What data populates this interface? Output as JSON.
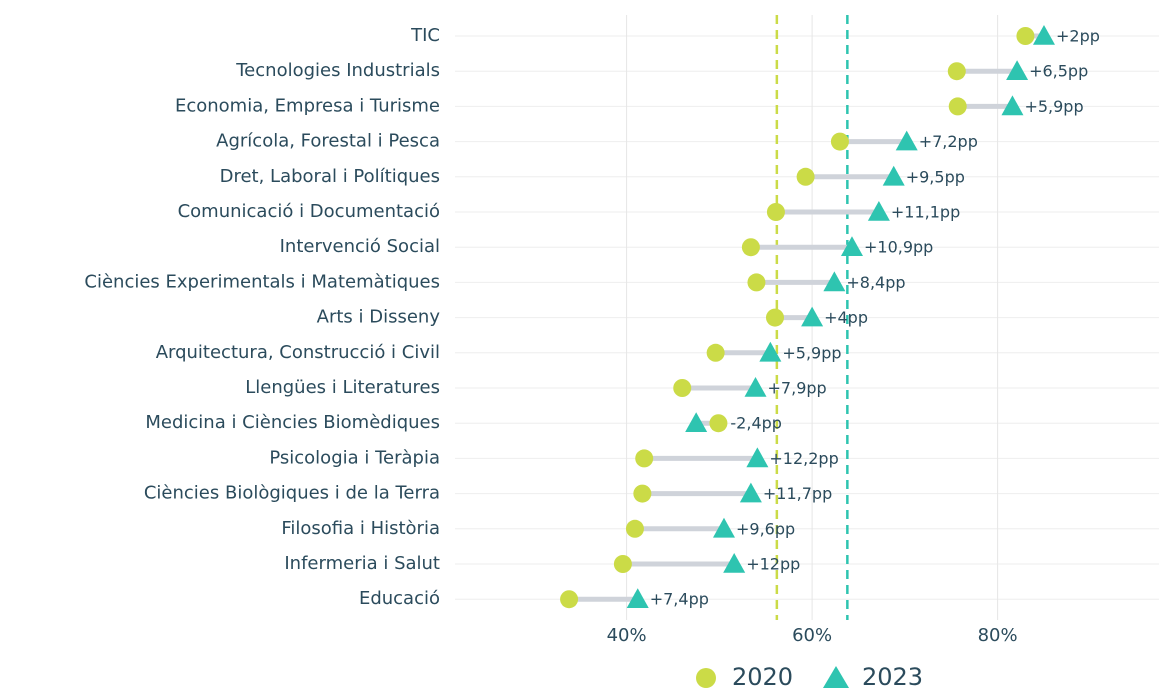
{
  "chart_data": {
    "type": "dumbbell",
    "categories": [
      "TIC",
      "Tecnologies Industrials",
      "Economia, Empresa i Turisme",
      "Agrícola, Forestal i Pesca",
      "Dret, Laboral i Polítiques",
      "Comunicació i Documentació",
      "Intervenció Social",
      "Ciències Experimentals i Matemàtiques",
      "Arts i Disseny",
      "Arquitectura, Construcció i Civil",
      "Llengües i Literatures",
      "Medicina i Ciències Biomèdiques",
      "Psicologia i Teràpia",
      "Ciències Biològiques i de la Terra",
      "Filosofia i Història",
      "Infermeria i Salut",
      "Educació"
    ],
    "series": [
      {
        "name": "2020",
        "color": "#cbdb47",
        "marker": "circle",
        "values": [
          83.0,
          75.6,
          75.7,
          63.0,
          59.3,
          56.1,
          53.4,
          54.0,
          56.0,
          49.6,
          46.0,
          49.9,
          41.9,
          41.7,
          40.9,
          39.6,
          33.8
        ]
      },
      {
        "name": "2023",
        "color": "#2ec4b0",
        "marker": "triangle",
        "values": [
          85.0,
          82.1,
          81.6,
          70.2,
          68.8,
          67.2,
          64.3,
          62.4,
          60.0,
          55.5,
          53.9,
          47.5,
          54.1,
          53.4,
          50.5,
          51.6,
          41.2
        ]
      }
    ],
    "differences": {
      "values": [
        2,
        6.5,
        5.9,
        7.2,
        9.5,
        11.1,
        10.9,
        8.4,
        4,
        5.9,
        7.9,
        -2.4,
        12.2,
        11.7,
        9.6,
        12,
        7.4
      ],
      "value_labels": [
        "+2pp",
        "+6,5pp",
        "+5,9pp",
        "+7,2pp",
        "+9,5pp",
        "+11,1pp",
        "+10,9pp",
        "+8,4pp",
        "+4pp",
        "+5,9pp",
        "+7,9pp",
        "-2,4pp",
        "+12,2pp",
        "+11,7pp",
        "+9,6pp",
        "+12pp",
        "+7,4pp"
      ]
    },
    "reference_lines": [
      {
        "value": 56.2,
        "color": "#cbdb47"
      },
      {
        "value": 63.8,
        "color": "#2ec4b0"
      }
    ],
    "xlim": [
      21.5,
      97.4
    ],
    "xticks": [
      {
        "value": 40,
        "label": "40%"
      },
      {
        "value": 60,
        "label": "60%"
      },
      {
        "value": 80,
        "label": "80%"
      }
    ],
    "grid": true,
    "legend": "bottom"
  }
}
